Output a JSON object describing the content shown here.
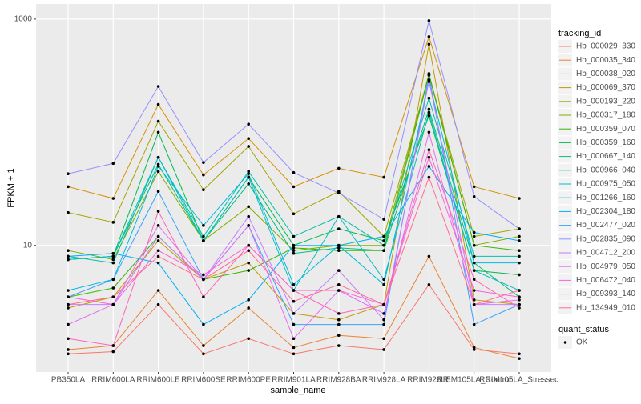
{
  "chart_data": {
    "type": "line",
    "x_label": "sample_name",
    "y_label": "FPKM + 1",
    "log_y": true,
    "ylim": [
      0.76,
      1360
    ],
    "yticks": [
      10,
      1000
    ],
    "grid": true,
    "legend_title": "tracking_id",
    "shape_legend": {
      "title": "quant_status",
      "labels": [
        "OK"
      ]
    },
    "point_color": "#000000",
    "categories": [
      "PB350LA",
      "RRIM600LA",
      "RRIM600LE",
      "RRIM600SE",
      "RRIM600PE",
      "RRIM901LA",
      "RRIM928BA",
      "RRIM928LA",
      "RRIM928LE",
      "RRIM105LA_Control",
      "RRIM105LA_Stressed"
    ],
    "series": [
      {
        "name": "Hb_000029_330",
        "color": "#F8766D",
        "values": [
          1.1,
          1.15,
          3.0,
          1.1,
          1.5,
          1.1,
          1.3,
          1.2,
          4.5,
          1.2,
          1.1
        ]
      },
      {
        "name": "Hb_000035_340",
        "color": "#EA8331",
        "values": [
          1.2,
          1.3,
          4.0,
          1.3,
          2.8,
          1.25,
          1.6,
          1.5,
          8,
          1.25,
          1.0
        ]
      },
      {
        "name": "Hb_000038_020",
        "color": "#D89000",
        "values": [
          33,
          26,
          176,
          42,
          88,
          33,
          48,
          40,
          700,
          33,
          26
        ]
      },
      {
        "name": "Hb_000069_370",
        "color": "#C09B00",
        "values": [
          2.8,
          3.5,
          11,
          5,
          7,
          2.5,
          2.2,
          3,
          600,
          3.3,
          3.0
        ]
      },
      {
        "name": "Hb_000193_220",
        "color": "#A3A500",
        "values": [
          19.5,
          16,
          125,
          31,
          75,
          19,
          30,
          12,
          320,
          12,
          14
        ]
      },
      {
        "name": "Hb_000317_180",
        "color": "#7CAE00",
        "values": [
          9,
          7.5,
          45,
          11,
          22,
          9,
          10,
          10,
          330,
          10,
          12
        ]
      },
      {
        "name": "Hb_000359_070",
        "color": "#39B600",
        "values": [
          3.5,
          4.2,
          12,
          5,
          6,
          9.5,
          9,
          9,
          320,
          10,
          9
        ]
      },
      {
        "name": "Hb_000359_160",
        "color": "#00BB4E",
        "values": [
          7.5,
          8,
          100,
          11,
          40,
          10,
          14,
          11,
          140,
          6,
          5.5
        ]
      },
      {
        "name": "Hb_000667_140",
        "color": "#00BF7D",
        "values": [
          7.5,
          8,
          52,
          11,
          35,
          8.5,
          9.5,
          9,
          160,
          7,
          3.5
        ]
      },
      {
        "name": "Hb_000966_040",
        "color": "#00C1A3",
        "values": [
          8,
          7,
          60,
          12,
          45,
          12,
          18,
          10,
          200,
          8,
          8
        ]
      },
      {
        "name": "Hb_000975_050",
        "color": "#00BFC4",
        "values": [
          7.5,
          8,
          60,
          11,
          40,
          4,
          18,
          5,
          150,
          6,
          4
        ]
      },
      {
        "name": "Hb_001266_160",
        "color": "#00BAE0",
        "values": [
          4,
          5,
          50,
          15,
          43,
          4.5,
          10,
          4.5,
          280,
          7,
          7
        ]
      },
      {
        "name": "Hb_002304_180",
        "color": "#00B0F6",
        "values": [
          8,
          8.5,
          7,
          2,
          3.3,
          10,
          10,
          12,
          50,
          13,
          11
        ]
      },
      {
        "name": "Hb_002477_020",
        "color": "#35A2FF",
        "values": [
          3.5,
          5,
          30,
          5,
          15,
          2,
          2,
          2,
          320,
          2,
          3
        ]
      },
      {
        "name": "Hb_002835_090",
        "color": "#9590FF",
        "values": [
          43,
          53,
          254,
          54,
          118,
          44,
          29,
          17,
          970,
          27,
          14
        ]
      },
      {
        "name": "Hb_004712_200",
        "color": "#C77CFF",
        "values": [
          3,
          3,
          12,
          5,
          18,
          2.5,
          6,
          2.2,
          290,
          3,
          3
        ]
      },
      {
        "name": "Hb_004979_050",
        "color": "#E76BF3",
        "values": [
          2,
          3,
          15,
          5,
          15,
          1.5,
          4,
          2.5,
          100,
          3,
          3.3
        ]
      },
      {
        "name": "Hb_006472_040",
        "color": "#FA62DB",
        "values": [
          3.5,
          3,
          9,
          5.5,
          10,
          4,
          4,
          3,
          60,
          4,
          3.5
        ]
      },
      {
        "name": "Hb_009393_140",
        "color": "#FF62BC",
        "values": [
          1.5,
          1.3,
          20,
          3.5,
          10,
          4,
          2.5,
          3,
          70,
          5,
          2.8
        ]
      },
      {
        "name": "Hb_134949_010",
        "color": "#FF6C91",
        "values": [
          3,
          3.5,
          8,
          5,
          9,
          3.2,
          4.5,
          3,
          40,
          3,
          4
        ]
      }
    ]
  }
}
